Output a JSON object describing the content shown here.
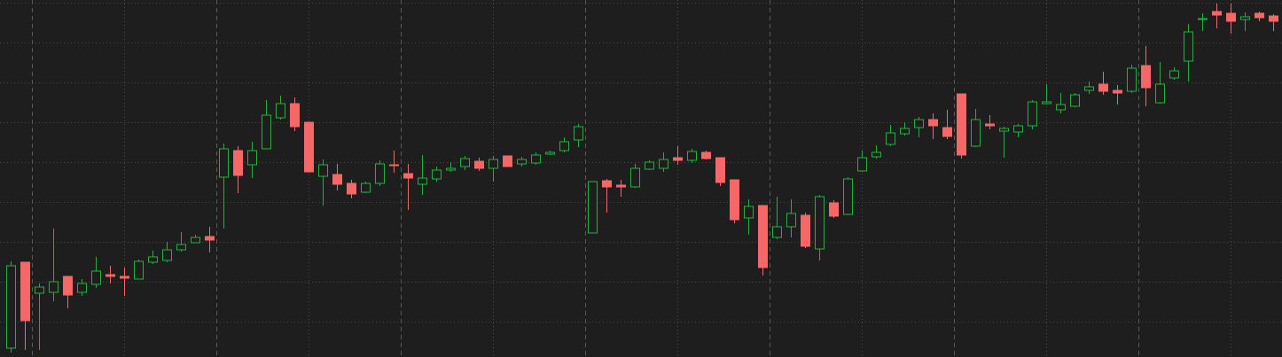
{
  "chart_data": {
    "type": "candlestick",
    "open": [
      10,
      107,
      72,
      73,
      91,
      73,
      82,
      93,
      91,
      88,
      107,
      109,
      121,
      129,
      136,
      203,
      233,
      217,
      235,
      270,
      286,
      265,
      204,
      206,
      196,
      186,
      196,
      217,
      207,
      195,
      201,
      211,
      215,
      221,
      213,
      227,
      218,
      219,
      229,
      233,
      245,
      140,
      199,
      194,
      192,
      212,
      213,
      225,
      222,
      231,
      225,
      200,
      157,
      171,
      135,
      147,
      160,
      122,
      174,
      161,
      210,
      226,
      240,
      252,
      259,
      268,
      259,
      297,
      238,
      263,
      255,
      254,
      261,
      286,
      279,
      283,
      301,
      308,
      301,
      300,
      329,
      287,
      315,
      334,
      381,
      390,
      388,
      381,
      388,
      385
    ],
    "high": [
      108,
      107,
      83,
      145,
      91,
      88,
      113,
      103,
      101,
      110,
      120,
      130,
      141,
      138,
      147,
      241,
      238,
      243,
      290,
      295,
      293,
      265,
      223,
      218,
      200,
      198,
      222,
      233,
      218,
      228,
      215,
      220,
      227,
      225,
      227,
      227,
      226,
      231,
      233,
      248,
      263,
      198,
      201,
      200,
      218,
      222,
      231,
      238,
      235,
      233,
      225,
      200,
      178,
      171,
      181,
      178,
      163,
      183,
      177,
      203,
      233,
      239,
      262,
      265,
      271,
      275,
      279,
      297,
      280,
      273,
      260,
      263,
      290,
      308,
      298,
      298,
      311,
      322,
      307,
      330,
      351,
      333,
      327,
      376,
      388,
      399,
      399,
      389,
      390,
      387
    ],
    "low": [
      5,
      8,
      8,
      63,
      55,
      69,
      78,
      83,
      69,
      88,
      105,
      107,
      119,
      129,
      118,
      145,
      185,
      202,
      235,
      268,
      255,
      209,
      171,
      188,
      179,
      185,
      193,
      208,
      166,
      183,
      198,
      209,
      211,
      210,
      198,
      215,
      215,
      217,
      228,
      231,
      237,
      140,
      163,
      181,
      191,
      211,
      209,
      217,
      219,
      223,
      193,
      151,
      138,
      92,
      133,
      135,
      123,
      109,
      157,
      160,
      209,
      224,
      238,
      250,
      248,
      246,
      246,
      224,
      237,
      257,
      225,
      248,
      257,
      285,
      275,
      282,
      297,
      296,
      285,
      298,
      283,
      286,
      313,
      311,
      368,
      371,
      365,
      368,
      379,
      368
    ],
    "close": [
      103,
      41,
      79,
      85,
      70,
      83,
      97,
      91,
      89,
      108,
      113,
      121,
      127,
      135,
      132,
      235,
      205,
      233,
      273,
      286,
      260,
      209,
      217,
      195,
      184,
      196,
      218,
      216,
      202,
      202,
      211,
      213,
      224,
      213,
      223,
      215,
      223,
      228,
      231,
      243,
      260,
      198,
      192,
      192,
      213,
      220,
      223,
      222,
      232,
      224,
      197,
      155,
      170,
      101,
      147,
      162,
      125,
      181,
      159,
      201,
      225,
      231,
      253,
      258,
      268,
      261,
      249,
      228,
      268,
      261,
      258,
      261,
      288,
      288,
      285,
      296,
      305,
      300,
      298,
      326,
      304,
      308,
      323,
      367,
      382,
      386,
      379,
      384,
      383,
      379
    ],
    "up_color": "#22b33a",
    "down_color": "#f76767",
    "ylim": [
      0,
      403
    ],
    "yticks": [
      40,
      85,
      130,
      175,
      220,
      265,
      310,
      355,
      400
    ],
    "xlim": [
      -0.75,
      89.625
    ],
    "xticks": [
      1.5,
      8,
      14.5,
      21,
      27.5,
      34,
      40.5,
      47,
      53.5,
      60,
      66.5,
      73,
      79.5,
      86
    ],
    "grid": true
  }
}
